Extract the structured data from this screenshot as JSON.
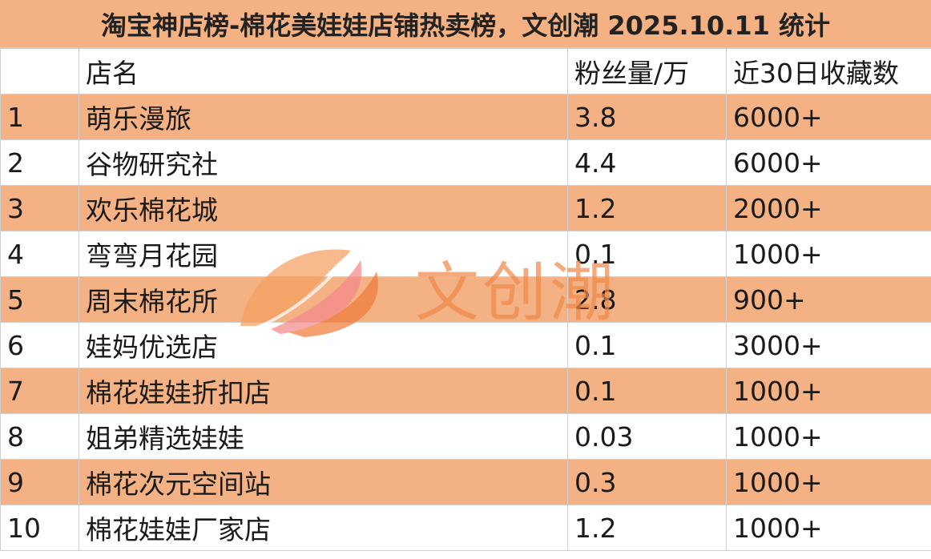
{
  "title": "淘宝神店榜-棉花美娃娃店铺热卖榜，文创潮 2025.10.11 统计",
  "columns": {
    "rank": "",
    "name": "店名",
    "fans": "粉丝量/万",
    "favorites": "近30日收藏数"
  },
  "rows": [
    {
      "rank": "1",
      "name": "萌乐漫旅",
      "fans": "3.8",
      "favorites": "6000+"
    },
    {
      "rank": "2",
      "name": "谷物研究社",
      "fans": "4.4",
      "favorites": "6000+"
    },
    {
      "rank": "3",
      "name": "欢乐棉花城",
      "fans": "1.2",
      "favorites": "2000+"
    },
    {
      "rank": "4",
      "name": "弯弯月花园",
      "fans": "0.1",
      "favorites": "1000+"
    },
    {
      "rank": "5",
      "name": "周末棉花所",
      "fans": "2.8",
      "favorites": "900+"
    },
    {
      "rank": "6",
      "name": "娃妈优选店",
      "fans": "0.1",
      "favorites": "3000+"
    },
    {
      "rank": "7",
      "name": "棉花娃娃折扣店",
      "fans": "0.1",
      "favorites": "1000+"
    },
    {
      "rank": "8",
      "name": "姐弟精选娃娃",
      "fans": "0.03",
      "favorites": "1000+"
    },
    {
      "rank": "9",
      "name": "棉花次元空间站",
      "fans": "0.3",
      "favorites": "1000+"
    },
    {
      "rank": "10",
      "name": "棉花娃娃厂家店",
      "fans": "1.2",
      "favorites": "1000+"
    }
  ],
  "watermark": {
    "text": "文创潮",
    "icon": "leaf-logo-icon"
  },
  "colors": {
    "band": "#f4b183",
    "grid": "#d0d0d0",
    "watermark": "#f08a4b"
  }
}
